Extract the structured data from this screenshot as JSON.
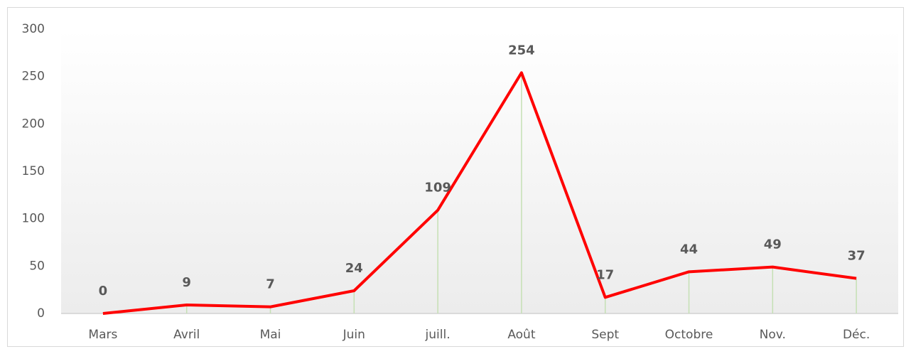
{
  "chart_data": {
    "type": "line",
    "categories": [
      "Mars",
      "Avril",
      "Mai",
      "Juin",
      "juill.",
      "Août",
      "Sept",
      "Octobre",
      "Nov.",
      "Déc."
    ],
    "series": [
      {
        "color": "#ff0000",
        "values": [
          0,
          9,
          7,
          24,
          109,
          254,
          17,
          44,
          49,
          37
        ]
      }
    ],
    "ylim": [
      0,
      300
    ],
    "yticks": [
      0,
      50,
      100,
      150,
      200,
      250,
      300
    ],
    "grid": false,
    "drop_lines": true
  }
}
